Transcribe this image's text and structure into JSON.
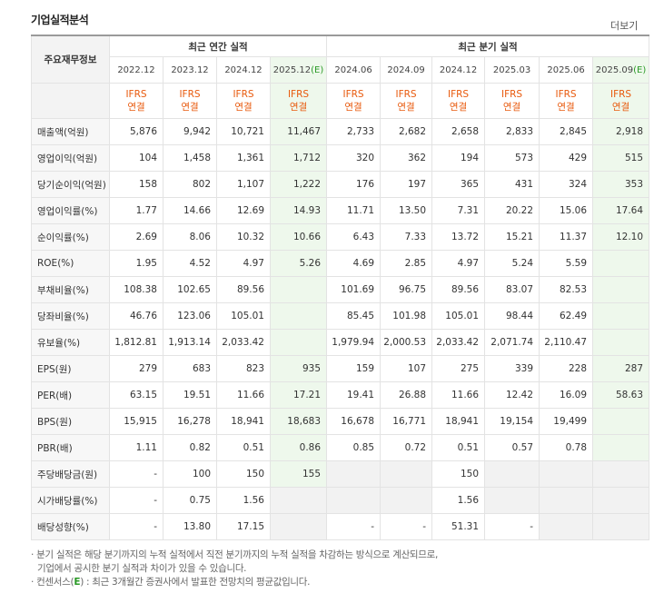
{
  "title": "기업실적분석",
  "more_label": "더보기",
  "table": {
    "row_header": "주요재무정보",
    "group_annual": "최근 연간 실적",
    "group_quarter": "최근 분기 실적",
    "periods": [
      "2022.12",
      "2023.12",
      "2024.12",
      "2025.12",
      "2024.06",
      "2024.09",
      "2024.12",
      "2025.03",
      "2025.06",
      "2025.09"
    ],
    "estimate_mark": "(E)",
    "ifrs_line1": "IFRS",
    "ifrs_line2": "연결",
    "rows": [
      {
        "label": "매출액(억원)",
        "values": [
          "5,876",
          "9,942",
          "10,721",
          "11,467",
          "2,733",
          "2,682",
          "2,658",
          "2,833",
          "2,845",
          "2,918"
        ]
      },
      {
        "label": "영업이익(억원)",
        "values": [
          "104",
          "1,458",
          "1,361",
          "1,712",
          "320",
          "362",
          "194",
          "573",
          "429",
          "515"
        ]
      },
      {
        "label": "당기순이익(억원)",
        "values": [
          "158",
          "802",
          "1,107",
          "1,222",
          "176",
          "197",
          "365",
          "431",
          "324",
          "353"
        ]
      },
      {
        "label": "영업이익률(%)",
        "values": [
          "1.77",
          "14.66",
          "12.69",
          "14.93",
          "11.71",
          "13.50",
          "7.31",
          "20.22",
          "15.06",
          "17.64"
        ]
      },
      {
        "label": "순이익률(%)",
        "values": [
          "2.69",
          "8.06",
          "10.32",
          "10.66",
          "6.43",
          "7.33",
          "13.72",
          "15.21",
          "11.37",
          "12.10"
        ]
      },
      {
        "label": "ROE(%)",
        "values": [
          "1.95",
          "4.52",
          "4.97",
          "5.26",
          "4.69",
          "2.85",
          "4.97",
          "5.24",
          "5.59",
          ""
        ]
      },
      {
        "label": "부채비율(%)",
        "values": [
          "108.38",
          "102.65",
          "89.56",
          "",
          "101.69",
          "96.75",
          "89.56",
          "83.07",
          "82.53",
          ""
        ]
      },
      {
        "label": "당좌비율(%)",
        "values": [
          "46.76",
          "123.06",
          "105.01",
          "",
          "85.45",
          "101.98",
          "105.01",
          "98.44",
          "62.49",
          ""
        ]
      },
      {
        "label": "유보율(%)",
        "values": [
          "1,812.81",
          "1,913.14",
          "2,033.42",
          "",
          "1,979.94",
          "2,000.53",
          "2,033.42",
          "2,071.74",
          "2,110.47",
          ""
        ]
      },
      {
        "label": "EPS(원)",
        "values": [
          "279",
          "683",
          "823",
          "935",
          "159",
          "107",
          "275",
          "339",
          "228",
          "287"
        ]
      },
      {
        "label": "PER(배)",
        "values": [
          "63.15",
          "19.51",
          "11.66",
          "17.21",
          "19.41",
          "26.88",
          "11.66",
          "12.42",
          "16.09",
          "58.63"
        ]
      },
      {
        "label": "BPS(원)",
        "values": [
          "15,915",
          "16,278",
          "18,941",
          "18,683",
          "16,678",
          "16,771",
          "18,941",
          "19,154",
          "19,499",
          ""
        ]
      },
      {
        "label": "PBR(배)",
        "values": [
          "1.11",
          "0.82",
          "0.51",
          "0.86",
          "0.85",
          "0.72",
          "0.51",
          "0.57",
          "0.78",
          ""
        ]
      },
      {
        "label": "주당배당금(원)",
        "values": [
          "-",
          "100",
          "150",
          "155",
          "",
          "",
          "150",
          "",
          "",
          ""
        ]
      },
      {
        "label": "시가배당률(%)",
        "values": [
          "-",
          "0.75",
          "1.56",
          "",
          "",
          "",
          "1.56",
          "",
          "",
          ""
        ]
      },
      {
        "label": "배당성향(%)",
        "values": [
          "-",
          "13.80",
          "17.15",
          "",
          "-",
          "-",
          "51.31",
          "-",
          "",
          ""
        ]
      }
    ]
  },
  "notes": {
    "line1": "· 분기 실적은 해당 분기까지의 누적 실적에서 직전 분기까지의 누적 실적을 차감하는 방식으로 계산되므로,",
    "line2": "기업에서 공시한 분기 실적과 차이가 있을 수 있습니다.",
    "line3_prefix": "· 컨센서스(",
    "line3_mark": "E",
    "line3_suffix": ") : 최근 3개월간 증권사에서 발표한 전망치의 평균값입니다."
  }
}
